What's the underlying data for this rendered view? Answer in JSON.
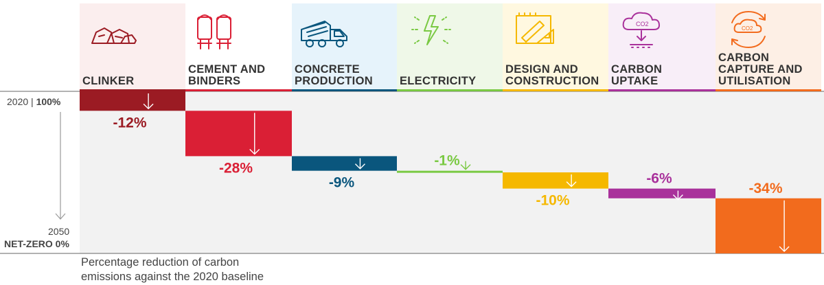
{
  "chart_data": {
    "type": "waterfall",
    "baseline_label_year": "2020",
    "baseline_label_value": "100%",
    "end_label_year": "2050",
    "end_label_value": "NET-ZERO 0%",
    "caption_line1": "Percentage reduction of carbon",
    "caption_line2": "emissions against the 2020 baseline",
    "ylim": [
      0,
      100
    ],
    "categories": [
      {
        "label1": "CLINKER",
        "label2": "",
        "label3": "",
        "value": -12,
        "value_label": "-12%",
        "color": "#9b1b23",
        "bg": "#fbeeee",
        "icon": "clinker-rocks-icon"
      },
      {
        "label1": "CEMENT AND",
        "label2": "BINDERS",
        "label3": "",
        "value": -28,
        "value_label": "-28%",
        "color": "#da1f35",
        "bg": "#ffffff",
        "icon": "cement-silos-icon"
      },
      {
        "label1": "CONCRETE",
        "label2": "PRODUCTION",
        "label3": "",
        "value": -9,
        "value_label": "-9%",
        "color": "#0a567d",
        "bg": "#e6f3fb",
        "icon": "concrete-mixer-truck-icon"
      },
      {
        "label1": "ELECTRICITY",
        "label2": "",
        "label3": "",
        "value": -1,
        "value_label": "-1%",
        "color": "#7ac943",
        "bg": "#eff8e8",
        "icon": "electricity-bolt-icon"
      },
      {
        "label1": "DESIGN AND",
        "label2": "CONSTRUCTION",
        "label3": "",
        "value": -10,
        "value_label": "-10%",
        "color": "#f5b800",
        "bg": "#fff8e0",
        "icon": "design-blueprint-icon"
      },
      {
        "label1": "CARBON",
        "label2": "UPTAKE",
        "label3": "",
        "value": -6,
        "value_label": "-6%",
        "color": "#a9319b",
        "bg": "#f8eef8",
        "icon": "co2-cloud-uptake-icon"
      },
      {
        "label1": "CARBON",
        "label2": "CAPTURE AND",
        "label3": "UTILISATION",
        "value": -34,
        "value_label": "-34%",
        "color": "#f26b1d",
        "bg": "#fdefe5",
        "icon": "co2-capture-cycle-icon"
      }
    ]
  }
}
